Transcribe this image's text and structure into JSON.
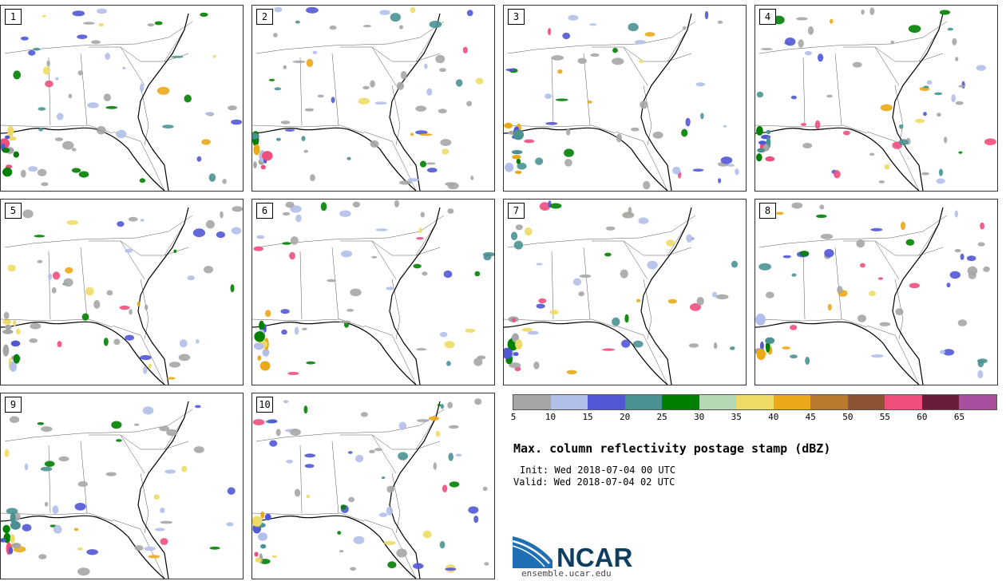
{
  "panels": [
    {
      "label": "1"
    },
    {
      "label": "2"
    },
    {
      "label": "3"
    },
    {
      "label": "4"
    },
    {
      "label": "5"
    },
    {
      "label": "6"
    },
    {
      "label": "7"
    },
    {
      "label": "8"
    },
    {
      "label": "9"
    },
    {
      "label": "10"
    }
  ],
  "colorbar": {
    "colors": [
      "#a6a6a6",
      "#b2bfea",
      "#5157d5",
      "#4a9292",
      "#008000",
      "#b6d9b5",
      "#eddb66",
      "#eba91a",
      "#ba7a2e",
      "#8d5434",
      "#ef4f7d",
      "#6a1c3a",
      "#a94d9f"
    ],
    "ticks": [
      "5",
      "10",
      "15",
      "20",
      "25",
      "30",
      "35",
      "40",
      "45",
      "50",
      "55",
      "60",
      "65"
    ]
  },
  "title": "Max. column reflectivity postage stamp (dBZ)",
  "init": "Init: Wed 2018-07-04 00 UTC",
  "valid": "Valid: Wed 2018-07-04 02 UTC",
  "logo": {
    "text": "NCAR",
    "url": "ensemble.ucar.edu"
  }
}
